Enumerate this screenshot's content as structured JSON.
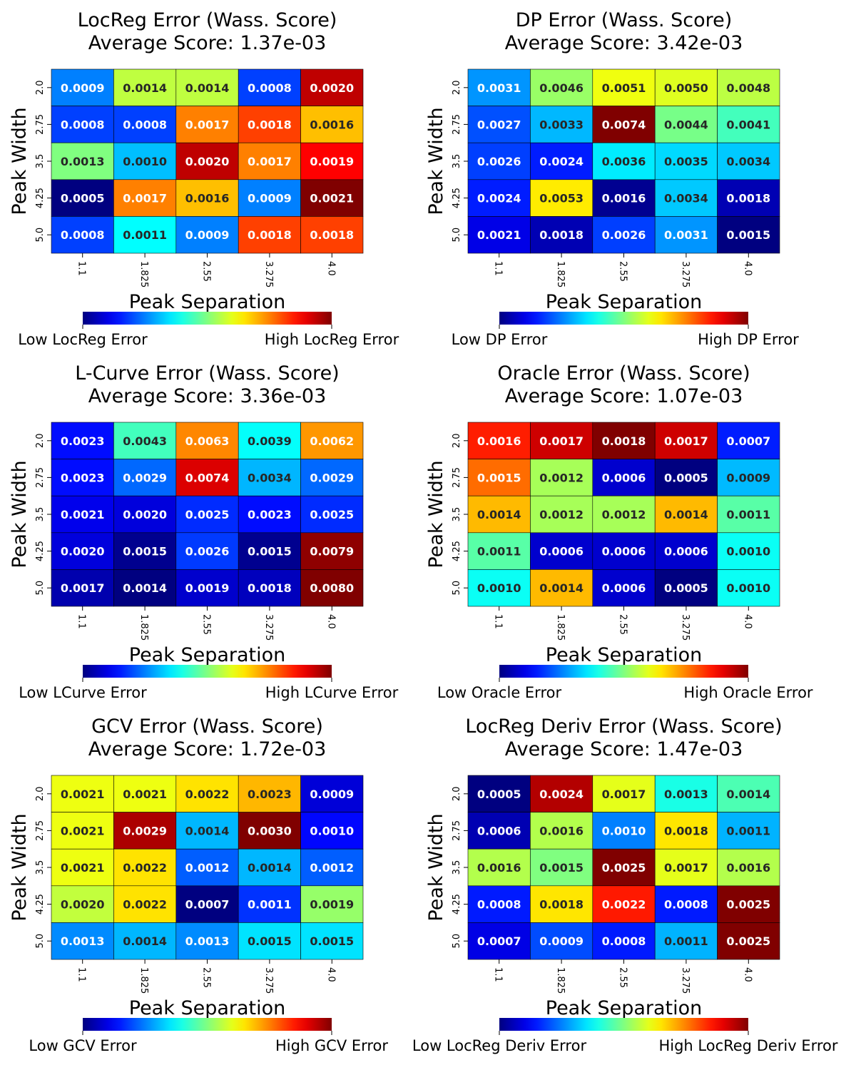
{
  "chart_data": [
    {
      "type": "heatmap",
      "title": "LocReg Error (Wass. Score)",
      "subtitle": "Average Score: 1.37e-03",
      "xlabel": "Peak Separation",
      "ylabel": "Peak Width",
      "x_categories": [
        "1.1",
        "1.825",
        "2.55",
        "3.275",
        "4.0"
      ],
      "y_categories": [
        "2.0",
        "2.75",
        "3.5",
        "4.25",
        "5.0"
      ],
      "values": [
        [
          0.0009,
          0.0014,
          0.0014,
          0.0008,
          0.002
        ],
        [
          0.0008,
          0.0008,
          0.0017,
          0.0018,
          0.0016
        ],
        [
          0.0013,
          0.001,
          0.002,
          0.0017,
          0.0019
        ],
        [
          0.0005,
          0.0017,
          0.0016,
          0.0009,
          0.0021
        ],
        [
          0.0008,
          0.0011,
          0.0009,
          0.0018,
          0.0018
        ]
      ],
      "colorbar_low_label": "Low LocReg Error",
      "colorbar_high_label": "High LocReg Error",
      "colormap": "jet"
    },
    {
      "type": "heatmap",
      "title": "DP Error (Wass. Score)",
      "subtitle": "Average Score: 3.42e-03",
      "xlabel": "Peak Separation",
      "ylabel": "Peak Width",
      "x_categories": [
        "1.1",
        "1.825",
        "2.55",
        "3.275",
        "4.0"
      ],
      "y_categories": [
        "2.0",
        "2.75",
        "3.5",
        "4.25",
        "5.0"
      ],
      "values": [
        [
          0.0031,
          0.0046,
          0.0051,
          0.005,
          0.0048
        ],
        [
          0.0027,
          0.0033,
          0.0074,
          0.0044,
          0.0041
        ],
        [
          0.0026,
          0.0024,
          0.0036,
          0.0035,
          0.0034
        ],
        [
          0.0024,
          0.0053,
          0.0016,
          0.0034,
          0.0018
        ],
        [
          0.0021,
          0.0018,
          0.0026,
          0.0031,
          0.0015
        ]
      ],
      "colorbar_low_label": "Low DP Error",
      "colorbar_high_label": "High DP Error",
      "colormap": "jet"
    },
    {
      "type": "heatmap",
      "title": "L-Curve Error (Wass. Score)",
      "subtitle": "Average Score: 3.36e-03",
      "xlabel": "Peak Separation",
      "ylabel": "Peak Width",
      "x_categories": [
        "1.1",
        "1.825",
        "2.55",
        "3.275",
        "4.0"
      ],
      "y_categories": [
        "2.0",
        "2.75",
        "3.5",
        "4.25",
        "5.0"
      ],
      "values": [
        [
          0.0023,
          0.0043,
          0.0063,
          0.0039,
          0.0062
        ],
        [
          0.0023,
          0.0029,
          0.0074,
          0.0034,
          0.0029
        ],
        [
          0.0021,
          0.002,
          0.0025,
          0.0023,
          0.0025
        ],
        [
          0.002,
          0.0015,
          0.0026,
          0.0015,
          0.0079
        ],
        [
          0.0017,
          0.0014,
          0.0019,
          0.0018,
          0.008
        ]
      ],
      "colorbar_low_label": "Low LCurve Error",
      "colorbar_high_label": "High LCurve Error",
      "colormap": "jet"
    },
    {
      "type": "heatmap",
      "title": "Oracle Error (Wass. Score)",
      "subtitle": "Average Score: 1.07e-03",
      "xlabel": "Peak Separation",
      "ylabel": "Peak Width",
      "x_categories": [
        "1.1",
        "1.825",
        "2.55",
        "3.275",
        "4.0"
      ],
      "y_categories": [
        "2.0",
        "2.75",
        "3.5",
        "4.25",
        "5.0"
      ],
      "values": [
        [
          0.0016,
          0.0017,
          0.0018,
          0.0017,
          0.0007
        ],
        [
          0.0015,
          0.0012,
          0.0006,
          0.0005,
          0.0009
        ],
        [
          0.0014,
          0.0012,
          0.0012,
          0.0014,
          0.0011
        ],
        [
          0.0011,
          0.0006,
          0.0006,
          0.0006,
          0.001
        ],
        [
          0.001,
          0.0014,
          0.0006,
          0.0005,
          0.001
        ]
      ],
      "colorbar_low_label": "Low Oracle Error",
      "colorbar_high_label": "High Oracle Error",
      "colormap": "jet"
    },
    {
      "type": "heatmap",
      "title": "GCV Error (Wass. Score)",
      "subtitle": "Average Score: 1.72e-03",
      "xlabel": "Peak Separation",
      "ylabel": "Peak Width",
      "x_categories": [
        "1.1",
        "1.825",
        "2.55",
        "3.275",
        "4.0"
      ],
      "y_categories": [
        "2.0",
        "2.75",
        "3.5",
        "4.25",
        "5.0"
      ],
      "values": [
        [
          0.0021,
          0.0021,
          0.0022,
          0.0023,
          0.0009
        ],
        [
          0.0021,
          0.0029,
          0.0014,
          0.003,
          0.001
        ],
        [
          0.0021,
          0.0022,
          0.0012,
          0.0014,
          0.0012
        ],
        [
          0.002,
          0.0022,
          0.0007,
          0.0011,
          0.0019
        ],
        [
          0.0013,
          0.0014,
          0.0013,
          0.0015,
          0.0015
        ]
      ],
      "colorbar_low_label": "Low GCV Error",
      "colorbar_high_label": "High GCV Error",
      "colormap": "jet"
    },
    {
      "type": "heatmap",
      "title": "LocReg Deriv Error (Wass. Score)",
      "subtitle": "Average Score: 1.47e-03",
      "xlabel": "Peak Separation",
      "ylabel": "Peak Width",
      "x_categories": [
        "1.1",
        "1.825",
        "2.55",
        "3.275",
        "4.0"
      ],
      "y_categories": [
        "2.0",
        "2.75",
        "3.5",
        "4.25",
        "5.0"
      ],
      "values": [
        [
          0.0005,
          0.0024,
          0.0017,
          0.0013,
          0.0014
        ],
        [
          0.0006,
          0.0016,
          0.001,
          0.0018,
          0.0011
        ],
        [
          0.0016,
          0.0015,
          0.0025,
          0.0017,
          0.0016
        ],
        [
          0.0008,
          0.0018,
          0.0022,
          0.0008,
          0.0025
        ],
        [
          0.0007,
          0.0009,
          0.0008,
          0.0011,
          0.0025
        ]
      ],
      "colorbar_low_label": "Low LocReg Deriv Error",
      "colorbar_high_label": "High LocReg Deriv Error",
      "colormap": "jet"
    }
  ]
}
